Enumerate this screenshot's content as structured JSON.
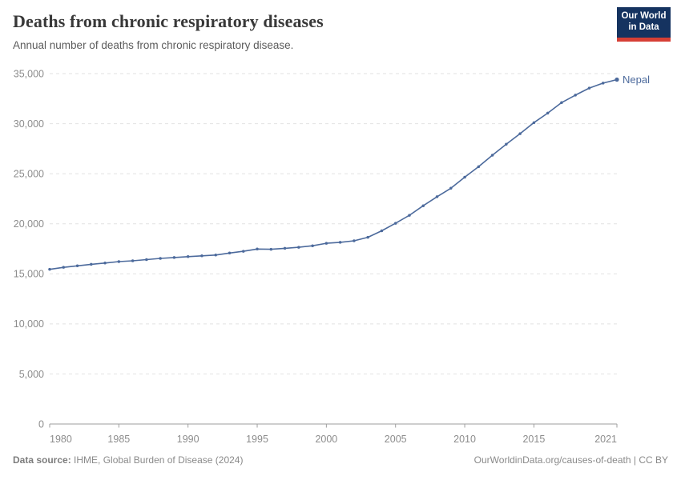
{
  "header": {
    "title": "Deaths from chronic respiratory diseases",
    "subtitle": "Annual number of deaths from chronic respiratory disease.",
    "logo": {
      "line1": "Our World",
      "line2": "in Data"
    }
  },
  "footer": {
    "source_label": "Data source:",
    "source_text": " IHME, Global Burden of Disease (2024)",
    "link_text": "OurWorldinData.org/causes-of-death | CC BY"
  },
  "colors": {
    "line": "#4c6a9c",
    "entity_label": "#4c6a9c",
    "grid": "#e2e2e2",
    "axis": "#9e9e9e",
    "tick_text": "#8c8c8c",
    "logo_navy": "#153360",
    "logo_red": "#d63f35"
  },
  "chart_data": {
    "type": "line",
    "title": "Deaths from chronic respiratory diseases",
    "subtitle": "Annual number of deaths from chronic respiratory disease.",
    "xlabel": "",
    "ylabel": "",
    "xlim": [
      1980,
      2021
    ],
    "ylim": [
      0,
      35000
    ],
    "x_ticks": [
      1980,
      1985,
      1990,
      1995,
      2000,
      2005,
      2010,
      2015,
      2021
    ],
    "y_ticks": [
      0,
      5000,
      10000,
      15000,
      20000,
      25000,
      30000,
      35000
    ],
    "grid": "horizontal-dashed",
    "legend_position": "end-of-line",
    "series": [
      {
        "name": "Nepal",
        "x": [
          1980,
          1981,
          1982,
          1983,
          1984,
          1985,
          1986,
          1987,
          1988,
          1989,
          1990,
          1991,
          1992,
          1993,
          1994,
          1995,
          1996,
          1997,
          1998,
          1999,
          2000,
          2001,
          2002,
          2003,
          2004,
          2005,
          2006,
          2007,
          2008,
          2009,
          2010,
          2011,
          2012,
          2013,
          2014,
          2015,
          2016,
          2017,
          2018,
          2019,
          2020,
          2021
        ],
        "values": [
          15450,
          15650,
          15800,
          15950,
          16080,
          16220,
          16300,
          16420,
          16540,
          16630,
          16720,
          16800,
          16880,
          17080,
          17250,
          17480,
          17450,
          17550,
          17650,
          17800,
          18050,
          18150,
          18300,
          18650,
          19300,
          20050,
          20850,
          21800,
          22700,
          23550,
          24650,
          25700,
          26850,
          27950,
          29000,
          30100,
          31050,
          32100,
          32850,
          33550,
          34050,
          34400
        ]
      }
    ]
  }
}
